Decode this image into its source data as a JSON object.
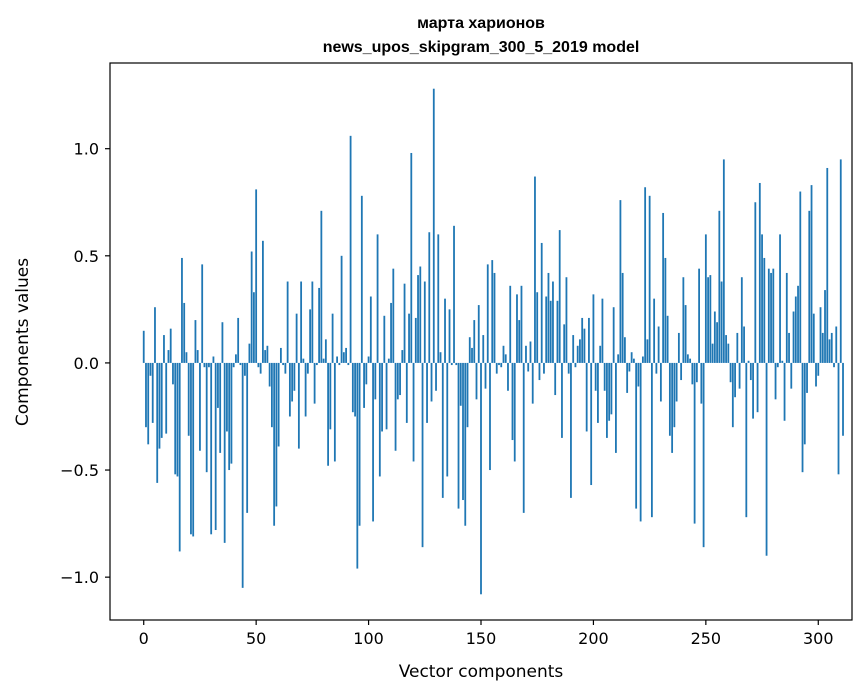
{
  "chart_data": {
    "type": "bar",
    "title_lines": [
      "марта харионов",
      "news_upos_skipgram_300_5_2019 model"
    ],
    "xlabel": "Vector components",
    "ylabel": "Components values",
    "xlim": [
      -15,
      315
    ],
    "ylim": [
      -1.2,
      1.4
    ],
    "xticks": [
      0,
      50,
      100,
      150,
      200,
      250,
      300
    ],
    "xtick_labels": [
      "0",
      "50",
      "100",
      "150",
      "200",
      "250",
      "300"
    ],
    "yticks": [
      -1.0,
      -0.5,
      0.0,
      0.5,
      1.0
    ],
    "ytick_labels": [
      "−1.0",
      "−0.5",
      "0.0",
      "0.5",
      "1.0"
    ],
    "bar_color": "#1f77b4",
    "grid": false,
    "values": [
      0.15,
      -0.3,
      -0.38,
      -0.06,
      -0.28,
      0.26,
      -0.56,
      -0.4,
      -0.35,
      0.13,
      -0.33,
      0.06,
      0.16,
      -0.1,
      -0.52,
      -0.53,
      -0.88,
      0.49,
      0.28,
      0.05,
      -0.34,
      -0.8,
      -0.81,
      0.2,
      0.06,
      -0.41,
      0.46,
      -0.02,
      -0.51,
      -0.02,
      -0.8,
      0.03,
      -0.78,
      -0.21,
      -0.42,
      0.19,
      -0.84,
      -0.32,
      -0.5,
      -0.47,
      -0.02,
      0.04,
      0.21,
      -0.01,
      -1.05,
      -0.06,
      -0.7,
      0.09,
      0.52,
      0.33,
      0.81,
      -0.02,
      -0.05,
      0.57,
      0.06,
      0.08,
      -0.11,
      -0.3,
      -0.76,
      -0.67,
      -0.39,
      0.07,
      -0.01,
      -0.05,
      0.38,
      -0.25,
      -0.18,
      -0.13,
      0.23,
      -0.4,
      0.38,
      0.02,
      -0.25,
      -0.05,
      0.25,
      0.38,
      -0.19,
      -0.01,
      0.35,
      0.71,
      0.02,
      0.11,
      -0.48,
      -0.31,
      0.23,
      -0.46,
      0.03,
      -0.01,
      0.5,
      0.05,
      0.07,
      -0.01,
      1.06,
      -0.23,
      -0.25,
      -0.96,
      -0.76,
      0.78,
      -0.21,
      -0.1,
      0.03,
      0.31,
      -0.74,
      -0.17,
      0.6,
      -0.53,
      -0.32,
      0.22,
      -0.31,
      0.02,
      0.28,
      0.44,
      -0.41,
      -0.17,
      -0.15,
      0.06,
      0.37,
      -0.28,
      0.23,
      0.98,
      -0.46,
      0.21,
      0.41,
      0.45,
      -0.86,
      0.38,
      -0.28,
      0.61,
      -0.18,
      1.28,
      -0.13,
      0.6,
      0.05,
      -0.63,
      0.3,
      -0.53,
      0.25,
      -0.01,
      0.64,
      -0.01,
      -0.68,
      -0.2,
      -0.64,
      -0.76,
      -0.3,
      0.12,
      0.07,
      0.2,
      -0.17,
      0.27,
      -1.08,
      0.13,
      -0.12,
      0.46,
      -0.5,
      0.48,
      0.42,
      -0.05,
      -0.01,
      -0.02,
      0.08,
      0.04,
      -0.13,
      0.36,
      -0.36,
      -0.46,
      0.32,
      0.2,
      0.36,
      -0.7,
      0.08,
      -0.04,
      0.1,
      -0.19,
      0.87,
      0.33,
      -0.08,
      0.56,
      -0.05,
      0.31,
      0.42,
      0.29,
      0.38,
      -0.15,
      0.29,
      0.62,
      -0.35,
      0.18,
      0.4,
      -0.05,
      -0.63,
      0.13,
      -0.02,
      0.08,
      0.11,
      0.21,
      0.16,
      -0.32,
      0.21,
      -0.57,
      0.32,
      -0.13,
      -0.28,
      0.08,
      0.3,
      -0.13,
      -0.35,
      -0.27,
      -0.24,
      0.26,
      -0.42,
      0.04,
      0.76,
      0.42,
      0.12,
      -0.14,
      -0.04,
      0.05,
      0.02,
      -0.68,
      -0.11,
      -0.74,
      0.03,
      0.82,
      0.11,
      0.78,
      -0.72,
      0.3,
      -0.05,
      0.17,
      -0.18,
      0.7,
      0.49,
      0.22,
      -0.34,
      -0.42,
      -0.3,
      -0.18,
      0.14,
      -0.08,
      0.4,
      0.27,
      0.04,
      0.02,
      -0.1,
      -0.75,
      -0.09,
      0.44,
      -0.19,
      -0.86,
      0.6,
      0.4,
      0.41,
      0.09,
      0.24,
      0.19,
      0.71,
      0.38,
      0.95,
      0.13,
      0.09,
      -0.09,
      -0.3,
      -0.16,
      0.14,
      -0.12,
      0.4,
      0.17,
      -0.72,
      0.01,
      -0.08,
      -0.26,
      0.75,
      -0.23,
      0.84,
      0.6,
      0.49,
      -0.9,
      0.44,
      0.42,
      0.44,
      -0.17,
      -0.02,
      0.6,
      0.01,
      -0.27,
      0.42,
      0.14,
      -0.12,
      0.24,
      0.31,
      0.36,
      0.8,
      -0.51,
      -0.38,
      -0.14,
      0.71,
      0.83,
      0.23,
      -0.11,
      -0.06,
      0.26,
      0.14,
      0.34,
      0.91,
      0.11,
      0.14,
      -0.02,
      0.17,
      -0.52,
      0.95,
      -0.34
    ]
  }
}
